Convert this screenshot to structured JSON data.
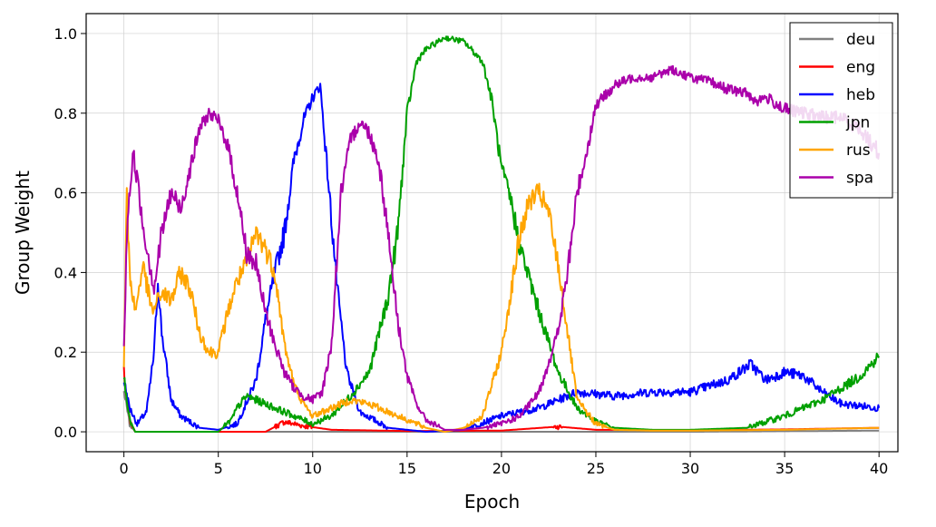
{
  "chart_data": {
    "type": "line",
    "xlabel": "Epoch",
    "ylabel": "Group Weight",
    "xlim": [
      -2,
      41
    ],
    "ylim": [
      -0.05,
      1.05
    ],
    "xticks": [
      0,
      5,
      10,
      15,
      20,
      25,
      30,
      35,
      40
    ],
    "yticks": [
      0.0,
      0.2,
      0.4,
      0.6,
      0.8,
      1.0
    ],
    "xtick_labels": [
      "0",
      "5",
      "10",
      "15",
      "20",
      "25",
      "30",
      "35",
      "40"
    ],
    "ytick_labels": [
      "0.0",
      "0.2",
      "0.4",
      "0.6",
      "0.8",
      "1.0"
    ],
    "grid": true,
    "legend_position": "top-right",
    "series": [
      {
        "name": "deu",
        "color": "#808080",
        "points": [
          [
            0,
            0.1
          ],
          [
            0.3,
            0.02
          ],
          [
            0.6,
            0.0
          ],
          [
            5,
            0.0
          ],
          [
            10,
            0.0
          ],
          [
            20,
            0.0
          ],
          [
            30,
            0.0
          ],
          [
            40,
            0.003
          ]
        ]
      },
      {
        "name": "eng",
        "color": "#ff0000",
        "points": [
          [
            0,
            0.15
          ],
          [
            0.3,
            0.03
          ],
          [
            0.6,
            0.0
          ],
          [
            5,
            0.0
          ],
          [
            7.5,
            0.0
          ],
          [
            8.5,
            0.025
          ],
          [
            9.5,
            0.015
          ],
          [
            11,
            0.005
          ],
          [
            15,
            0.002
          ],
          [
            20,
            0.003
          ],
          [
            23,
            0.013
          ],
          [
            25,
            0.005
          ],
          [
            30,
            0.004
          ],
          [
            35,
            0.006
          ],
          [
            40,
            0.01
          ]
        ]
      },
      {
        "name": "heb",
        "color": "#0000ff",
        "points": [
          [
            0,
            0.13
          ],
          [
            0.3,
            0.06
          ],
          [
            0.7,
            0.02
          ],
          [
            1.2,
            0.05
          ],
          [
            1.6,
            0.2
          ],
          [
            1.8,
            0.38
          ],
          [
            2.0,
            0.25
          ],
          [
            2.5,
            0.08
          ],
          [
            3,
            0.04
          ],
          [
            4,
            0.01
          ],
          [
            5,
            0.005
          ],
          [
            6,
            0.02
          ],
          [
            7,
            0.13
          ],
          [
            7.5,
            0.28
          ],
          [
            8,
            0.4
          ],
          [
            8.5,
            0.5
          ],
          [
            9,
            0.68
          ],
          [
            9.5,
            0.78
          ],
          [
            10,
            0.84
          ],
          [
            10.4,
            0.87
          ],
          [
            10.7,
            0.7
          ],
          [
            11.3,
            0.36
          ],
          [
            11.8,
            0.15
          ],
          [
            12.5,
            0.05
          ],
          [
            14,
            0.01
          ],
          [
            16,
            0.0
          ],
          [
            18,
            0.005
          ],
          [
            20,
            0.04
          ],
          [
            22,
            0.06
          ],
          [
            24,
            0.1
          ],
          [
            26,
            0.09
          ],
          [
            28,
            0.1
          ],
          [
            30,
            0.1
          ],
          [
            32,
            0.13
          ],
          [
            33.2,
            0.17
          ],
          [
            34,
            0.13
          ],
          [
            35,
            0.15
          ],
          [
            36,
            0.14
          ],
          [
            37,
            0.1
          ],
          [
            38,
            0.07
          ],
          [
            39,
            0.065
          ],
          [
            40,
            0.06
          ]
        ]
      },
      {
        "name": "jpn",
        "color": "#00a000",
        "points": [
          [
            0,
            0.14
          ],
          [
            0.3,
            0.03
          ],
          [
            0.6,
            0.0
          ],
          [
            5,
            0.0
          ],
          [
            5.7,
            0.03
          ],
          [
            6,
            0.06
          ],
          [
            6.5,
            0.09
          ],
          [
            7,
            0.08
          ],
          [
            8,
            0.06
          ],
          [
            9,
            0.04
          ],
          [
            10,
            0.02
          ],
          [
            11,
            0.04
          ],
          [
            12,
            0.09
          ],
          [
            13,
            0.15
          ],
          [
            14,
            0.34
          ],
          [
            14.5,
            0.5
          ],
          [
            15,
            0.8
          ],
          [
            15.5,
            0.93
          ],
          [
            16,
            0.96
          ],
          [
            17,
            0.99
          ],
          [
            18,
            0.98
          ],
          [
            19,
            0.93
          ],
          [
            19.5,
            0.83
          ],
          [
            20,
            0.66
          ],
          [
            20.5,
            0.58
          ],
          [
            21,
            0.46
          ],
          [
            22,
            0.3
          ],
          [
            23,
            0.15
          ],
          [
            24,
            0.06
          ],
          [
            25,
            0.025
          ],
          [
            26,
            0.01
          ],
          [
            28,
            0.005
          ],
          [
            30,
            0.005
          ],
          [
            33,
            0.01
          ],
          [
            35,
            0.04
          ],
          [
            37,
            0.08
          ],
          [
            38,
            0.11
          ],
          [
            39,
            0.14
          ],
          [
            40,
            0.19
          ]
        ]
      },
      {
        "name": "rus",
        "color": "#ffa500",
        "points": [
          [
            0,
            0.17
          ],
          [
            0.15,
            0.6
          ],
          [
            0.3,
            0.4
          ],
          [
            0.6,
            0.3
          ],
          [
            1,
            0.42
          ],
          [
            1.5,
            0.3
          ],
          [
            2,
            0.35
          ],
          [
            2.5,
            0.33
          ],
          [
            3,
            0.4
          ],
          [
            3.5,
            0.36
          ],
          [
            4,
            0.25
          ],
          [
            4.5,
            0.2
          ],
          [
            5,
            0.2
          ],
          [
            5.5,
            0.3
          ],
          [
            6,
            0.38
          ],
          [
            6.5,
            0.42
          ],
          [
            7,
            0.5
          ],
          [
            7.5,
            0.46
          ],
          [
            8,
            0.4
          ],
          [
            8.5,
            0.22
          ],
          [
            9,
            0.12
          ],
          [
            9.5,
            0.07
          ],
          [
            10,
            0.04
          ],
          [
            11,
            0.06
          ],
          [
            12,
            0.08
          ],
          [
            13,
            0.07
          ],
          [
            14,
            0.05
          ],
          [
            15,
            0.03
          ],
          [
            16,
            0.01
          ],
          [
            17,
            0.0
          ],
          [
            18,
            0.01
          ],
          [
            19,
            0.04
          ],
          [
            20,
            0.2
          ],
          [
            20.5,
            0.35
          ],
          [
            21,
            0.5
          ],
          [
            21.5,
            0.58
          ],
          [
            22,
            0.6
          ],
          [
            22.5,
            0.55
          ],
          [
            23,
            0.42
          ],
          [
            23.5,
            0.25
          ],
          [
            24,
            0.08
          ],
          [
            25,
            0.02
          ],
          [
            26,
            0.005
          ],
          [
            28,
            0.003
          ],
          [
            30,
            0.003
          ],
          [
            35,
            0.005
          ],
          [
            40,
            0.01
          ]
        ]
      },
      {
        "name": "spa",
        "color": "#aa00aa",
        "points": [
          [
            0,
            0.22
          ],
          [
            0.2,
            0.55
          ],
          [
            0.5,
            0.7
          ],
          [
            0.8,
            0.6
          ],
          [
            1,
            0.52
          ],
          [
            1.3,
            0.44
          ],
          [
            1.6,
            0.36
          ],
          [
            2,
            0.5
          ],
          [
            2.5,
            0.6
          ],
          [
            3,
            0.56
          ],
          [
            3.5,
            0.66
          ],
          [
            4,
            0.76
          ],
          [
            4.5,
            0.8
          ],
          [
            5,
            0.78
          ],
          [
            5.5,
            0.72
          ],
          [
            6,
            0.6
          ],
          [
            6.5,
            0.45
          ],
          [
            7,
            0.42
          ],
          [
            7.5,
            0.3
          ],
          [
            8,
            0.22
          ],
          [
            8.5,
            0.15
          ],
          [
            9,
            0.11
          ],
          [
            9.5,
            0.09
          ],
          [
            10,
            0.08
          ],
          [
            10.5,
            0.1
          ],
          [
            11,
            0.22
          ],
          [
            11.5,
            0.6
          ],
          [
            12,
            0.73
          ],
          [
            12.5,
            0.78
          ],
          [
            13,
            0.75
          ],
          [
            13.5,
            0.68
          ],
          [
            14,
            0.5
          ],
          [
            14.5,
            0.28
          ],
          [
            15,
            0.14
          ],
          [
            15.5,
            0.07
          ],
          [
            16,
            0.03
          ],
          [
            17,
            0.005
          ],
          [
            18,
            0.005
          ],
          [
            19,
            0.01
          ],
          [
            20,
            0.02
          ],
          [
            21,
            0.04
          ],
          [
            22,
            0.1
          ],
          [
            23,
            0.25
          ],
          [
            23.5,
            0.4
          ],
          [
            24,
            0.6
          ],
          [
            24.5,
            0.7
          ],
          [
            25,
            0.82
          ],
          [
            26,
            0.87
          ],
          [
            27,
            0.89
          ],
          [
            28,
            0.89
          ],
          [
            29,
            0.91
          ],
          [
            30,
            0.89
          ],
          [
            31,
            0.88
          ],
          [
            32,
            0.86
          ],
          [
            33,
            0.85
          ],
          [
            33.5,
            0.83
          ],
          [
            34,
            0.84
          ],
          [
            35,
            0.81
          ],
          [
            36,
            0.8
          ],
          [
            37,
            0.79
          ],
          [
            38,
            0.79
          ],
          [
            39,
            0.76
          ],
          [
            40,
            0.7
          ]
        ]
      }
    ]
  }
}
